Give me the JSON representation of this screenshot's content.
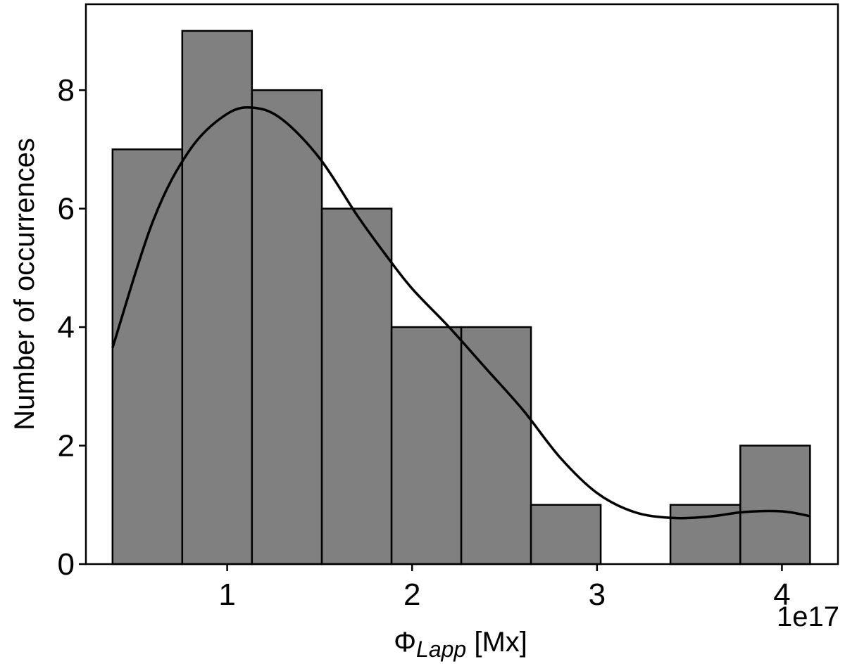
{
  "chart_data": {
    "type": "bar",
    "subtype": "histogram",
    "xlabel": {
      "symbol": "Φ",
      "subscript": "Lapp",
      "unit": " [Mx]"
    },
    "ylabel": "Number of occurrences",
    "x_offset_label": "1e17",
    "xlim": [
      0.236,
      4.303
    ],
    "ylim": [
      0,
      9.45
    ],
    "xticks": [
      1,
      2,
      3,
      4
    ],
    "yticks": [
      0,
      2,
      4,
      6,
      8
    ],
    "bins": [
      {
        "x0": 0.38,
        "x1": 0.757,
        "count": 7
      },
      {
        "x0": 0.757,
        "x1": 1.134,
        "count": 9
      },
      {
        "x0": 1.134,
        "x1": 1.512,
        "count": 8
      },
      {
        "x0": 1.512,
        "x1": 1.889,
        "count": 6
      },
      {
        "x0": 1.889,
        "x1": 2.266,
        "count": 4
      },
      {
        "x0": 2.266,
        "x1": 2.643,
        "count": 4
      },
      {
        "x0": 2.643,
        "x1": 3.02,
        "count": 1
      },
      {
        "x0": 3.02,
        "x1": 3.397,
        "count": 0
      },
      {
        "x0": 3.397,
        "x1": 3.775,
        "count": 1
      },
      {
        "x0": 3.775,
        "x1": 4.152,
        "count": 2
      }
    ],
    "kde": {
      "x": [
        0.38,
        0.6,
        0.8,
        1.0,
        1.15,
        1.3,
        1.5,
        1.7,
        1.85,
        2.0,
        2.2,
        2.4,
        2.6,
        2.8,
        3.0,
        3.2,
        3.4,
        3.6,
        3.8,
        4.0,
        4.152
      ],
      "y": [
        3.65,
        5.8,
        7.0,
        7.6,
        7.7,
        7.5,
        6.85,
        5.9,
        5.25,
        4.65,
        4.0,
        3.3,
        2.6,
        1.8,
        1.2,
        0.88,
        0.78,
        0.8,
        0.88,
        0.89,
        0.81
      ]
    },
    "colors": {
      "bar_fill": "#808080",
      "bar_stroke": "#000000",
      "line": "#000000"
    },
    "grid": false,
    "legend": "none"
  }
}
